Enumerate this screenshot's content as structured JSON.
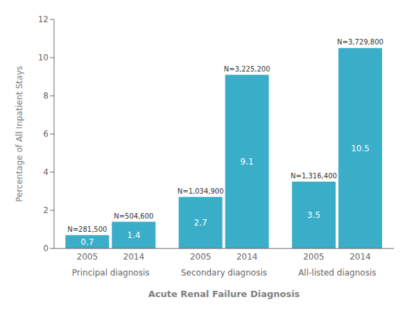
{
  "chart_data": {
    "type": "bar",
    "categories": [
      "Principal diagnosis",
      "Secondary diagnosis",
      "All-listed diagnosis"
    ],
    "series": [
      {
        "name": "2005",
        "color": "#3AAEC8",
        "values": [
          0.7,
          2.7,
          3.5
        ],
        "n_labels": [
          "N=281,500",
          "N=1,034,900",
          "N=1,316,400"
        ]
      },
      {
        "name": "2014",
        "color": "#3AAEC8",
        "values": [
          1.4,
          9.1,
          10.5
        ],
        "n_labels": [
          "N=504,600",
          "N=3,225,200",
          "N=3,729,800"
        ]
      }
    ],
    "xlabel": "Acute Renal Failure Diagnosis",
    "ylabel": "Percentage of All Inpatient Stays",
    "ylim": [
      0,
      12
    ],
    "yticks": [
      0,
      2,
      4,
      6,
      8,
      10,
      12
    ],
    "grid": false,
    "data_labels": true
  }
}
